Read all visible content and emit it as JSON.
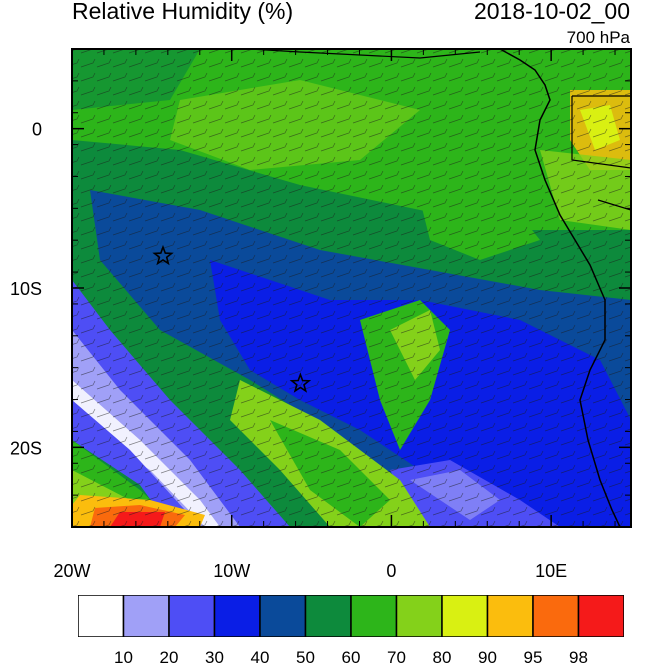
{
  "header": {
    "title": "Relative Humidity (%)",
    "date": "2018-10-02_00",
    "level": "700 hPa"
  },
  "map": {
    "lon_range": [
      -20,
      15
    ],
    "lat_range": [
      -25,
      5
    ],
    "x_ticks": [
      {
        "value": -20,
        "label": "20W"
      },
      {
        "value": -10,
        "label": "10W"
      },
      {
        "value": 0,
        "label": "0"
      },
      {
        "value": 10,
        "label": "10E"
      }
    ],
    "y_ticks": [
      {
        "value": 0,
        "label": "0"
      },
      {
        "value": -10,
        "label": "10S"
      },
      {
        "value": -20,
        "label": "20S"
      }
    ],
    "markers": [
      {
        "name": "star",
        "lon": -14.3,
        "lat": -8.0
      },
      {
        "name": "star",
        "lon": -5.7,
        "lat": -16.0
      }
    ],
    "wind_barbs": true
  },
  "colorbar": {
    "colors": [
      "#ffffff",
      "#a0a0f7",
      "#4e4ef5",
      "#0a1ee6",
      "#0a4a9a",
      "#0d8a3c",
      "#2db51a",
      "#84d11a",
      "#d9f012",
      "#fbbd0d",
      "#fa6a0d",
      "#f51a1a"
    ],
    "labels": [
      "10",
      "20",
      "30",
      "40",
      "50",
      "60",
      "70",
      "80",
      "90",
      "95",
      "98"
    ]
  }
}
